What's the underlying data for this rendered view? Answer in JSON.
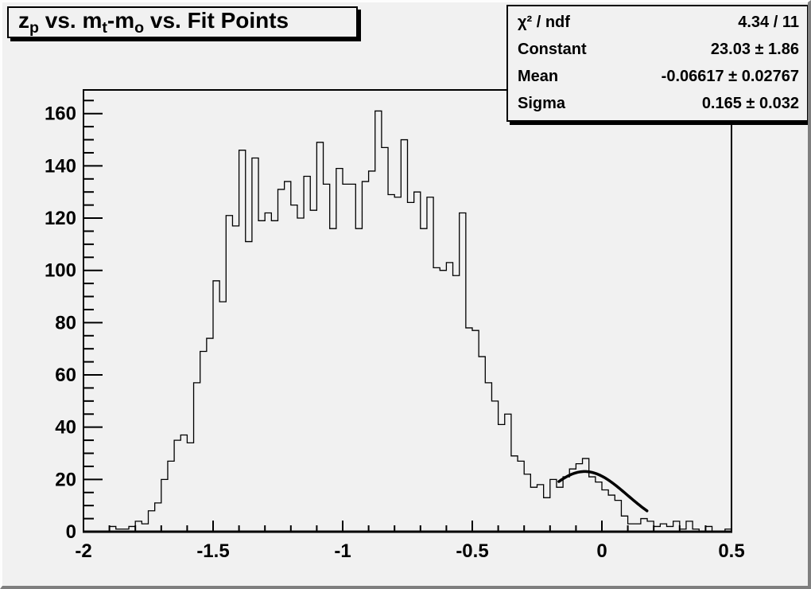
{
  "window": {
    "background": "#f1f1f1",
    "border_light": "#fdfdfd",
    "border_dark": "#7f7f7f",
    "foreground": "#000000"
  },
  "title_box": {
    "text": "z_p vs. m_t-m_o vs. Fit Points",
    "parts": [
      {
        "text": "z"
      },
      {
        "text": "p",
        "sub": true
      },
      {
        "text": " vs. m"
      },
      {
        "text": "t",
        "sub": true
      },
      {
        "text": "-m"
      },
      {
        "text": "o",
        "sub": true
      },
      {
        "text": " vs. Fit Points"
      }
    ]
  },
  "stats_box": {
    "rows": [
      {
        "label": "χ² / ndf",
        "value": "4.34 / 11"
      },
      {
        "label": "Constant",
        "value": "23.03 ± 1.86"
      },
      {
        "label": "Mean",
        "value": "-0.06617 ± 0.02767"
      },
      {
        "label": "Sigma",
        "value": "0.165 ± 0.032"
      }
    ]
  },
  "chart_data": {
    "type": "bar",
    "style": "step-histogram",
    "title": "z_p vs. m_t-m_o vs. Fit Points",
    "xlabel": "",
    "ylabel": "",
    "grid": false,
    "legend": false,
    "xlim": [
      -2,
      0.5
    ],
    "ylim": [
      0,
      169.05
    ],
    "x_major_ticks": [
      -2,
      -1.5,
      -1,
      -0.5,
      0,
      0.5
    ],
    "x_tick_labels": [
      "-2",
      "-1.5",
      "-1",
      "-0.5",
      "0",
      "0.5"
    ],
    "x_minor_step": 0.1,
    "y_major_ticks": [
      0,
      20,
      40,
      60,
      80,
      100,
      120,
      140,
      160
    ],
    "y_tick_labels": [
      "0",
      "20",
      "40",
      "60",
      "80",
      "100",
      "120",
      "140",
      "160"
    ],
    "y_minor_step": 5,
    "hist_color": "#000000",
    "bin_start": -2,
    "bin_width": 0.025,
    "values": [
      0,
      0,
      0,
      0,
      2,
      1,
      1,
      2,
      4,
      3,
      8,
      11,
      20,
      27,
      35,
      37,
      34,
      57,
      69,
      74,
      96,
      88,
      121,
      117,
      146,
      111,
      143,
      119,
      122,
      119,
      131,
      134,
      125,
      120,
      136,
      123,
      149,
      133,
      116,
      139,
      133,
      133,
      116,
      134,
      138,
      161,
      147,
      129,
      128,
      150,
      126,
      130,
      116,
      128,
      101,
      100,
      103,
      98,
      122,
      78,
      77,
      67,
      57,
      50,
      41,
      45,
      29,
      27,
      22,
      17,
      18,
      13,
      20,
      17,
      21,
      24,
      26,
      28,
      21,
      19,
      16,
      14,
      12,
      6,
      3,
      3,
      5,
      4,
      2,
      3,
      2,
      4,
      1,
      4,
      1,
      0,
      2,
      0,
      0,
      1
    ],
    "fit_curve": {
      "type": "gaussian",
      "chi2": 4.34,
      "ndf": 11,
      "constant": 23.03,
      "mean": -0.06617,
      "sigma": 0.165,
      "draw_range": [
        -0.166,
        0.174
      ],
      "color": "#000000",
      "line_width": 3.5
    }
  }
}
